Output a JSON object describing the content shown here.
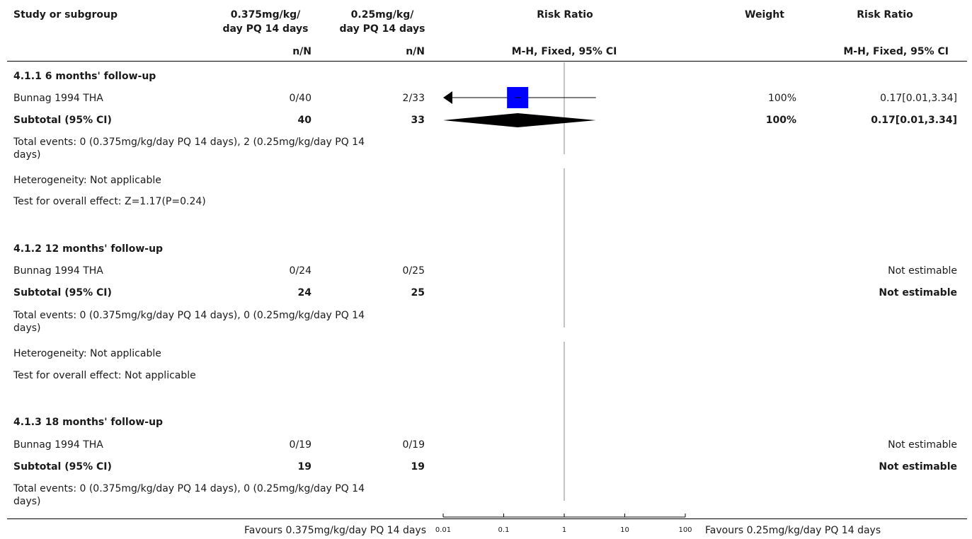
{
  "header": {
    "col_study": "Study or subgroup",
    "col_exp_line1": "0.375mg/kg/",
    "col_exp_line2": "day PQ 14 days",
    "col_ctl_line1": "0.25mg/kg/",
    "col_ctl_line2": "day PQ 14 days",
    "col_rr": "Risk Ratio",
    "col_weight": "Weight",
    "col_rr2": "Risk Ratio",
    "sub_exp": "n/N",
    "sub_ctl": "n/N",
    "sub_rr": "M-H, Fixed, 95% CI",
    "sub_rr2": "M-H, Fixed, 95% CI"
  },
  "groups": [
    {
      "title": "4.1.1 6 months' follow-up",
      "study": {
        "name": "Bunnag 1994 THA",
        "exp": "0/40",
        "ctl": "2/33",
        "weight": "100%",
        "rr": "0.17[0.01,3.34]"
      },
      "subtotal": {
        "label": "Subtotal (95% CI)",
        "exp": "40",
        "ctl": "33",
        "weight": "100%",
        "rr": "0.17[0.01,3.34]"
      },
      "total_events_l1": "Total events: 0 (0.375mg/kg/day PQ 14 days), 2 (0.25mg/kg/day PQ 14",
      "total_events_l2": "days)",
      "heterogeneity": "Heterogeneity: Not applicable",
      "overall": "Test for overall effect: Z=1.17(P=0.24)"
    },
    {
      "title": "4.1.2 12 months' follow-up",
      "study": {
        "name": "Bunnag 1994 THA",
        "exp": "0/24",
        "ctl": "0/25",
        "weight": "",
        "rr": "Not estimable"
      },
      "subtotal": {
        "label": "Subtotal (95% CI)",
        "exp": "24",
        "ctl": "25",
        "weight": "",
        "rr": "Not estimable"
      },
      "total_events_l1": "Total events: 0 (0.375mg/kg/day PQ 14 days), 0 (0.25mg/kg/day PQ 14",
      "total_events_l2": "days)",
      "heterogeneity": "Heterogeneity: Not applicable",
      "overall": "Test for overall effect: Not applicable"
    },
    {
      "title": "4.1.3 18 months' follow-up",
      "study": {
        "name": "Bunnag 1994 THA",
        "exp": "0/19",
        "ctl": "0/19",
        "weight": "",
        "rr": "Not estimable"
      },
      "subtotal": {
        "label": "Subtotal (95% CI)",
        "exp": "19",
        "ctl": "19",
        "weight": "",
        "rr": "Not estimable"
      },
      "total_events_l1": "Total events: 0 (0.375mg/kg/day PQ 14 days), 0 (0.25mg/kg/day PQ 14",
      "total_events_l2": "days)"
    }
  ],
  "footer": {
    "favours_left": "Favours 0.375mg/kg/day PQ 14 days",
    "favours_right": "Favours 0.25mg/kg/day PQ 14 days"
  },
  "colors": {
    "study_marker": "#0000ff",
    "diamond": "#000000",
    "line": "#000000"
  },
  "chart_data": {
    "type": "forest",
    "scale": "log",
    "xlim": [
      0.01,
      100
    ],
    "ticks": [
      {
        "value": 0.01,
        "label": "0.01"
      },
      {
        "value": 0.1,
        "label": "0.1"
      },
      {
        "value": 1,
        "label": "1"
      },
      {
        "value": 10,
        "label": "10"
      },
      {
        "value": 100,
        "label": "100"
      }
    ],
    "null_line": 1,
    "study_estimates": [
      {
        "label": "Bunnag 1994 THA",
        "point": 0.17,
        "lower": 0.01,
        "upper": 3.34,
        "weight": 100
      }
    ],
    "subtotals": [
      {
        "label": "Subtotal (95% CI)",
        "point": 0.17,
        "lower": 0.01,
        "upper": 3.34
      }
    ]
  }
}
